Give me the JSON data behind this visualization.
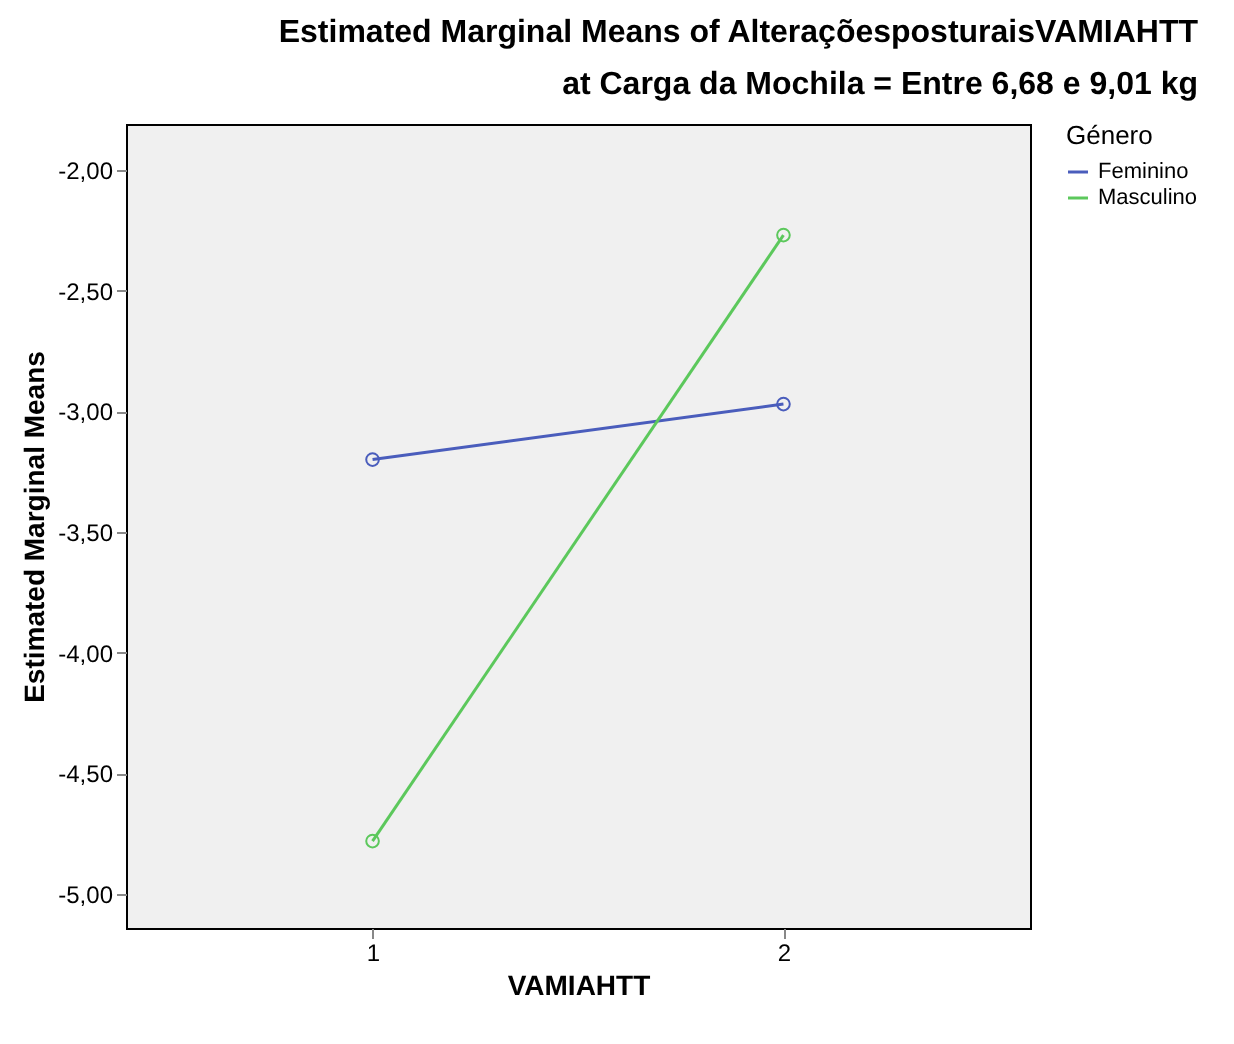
{
  "chart_data": {
    "type": "line",
    "title": "Estimated Marginal Means of AlteraçõesposturaisVAMIAHTT",
    "subtitle": "at Carga da Mochila = Entre 6,68 e 9,01 kg",
    "xlabel": "VAMIAHTT",
    "ylabel": "Estimated Marginal Means",
    "legend_title": "Género",
    "categories": [
      "1",
      "2"
    ],
    "series": [
      {
        "name": "Feminino",
        "color": "#4a5dbc",
        "values": [
          -3.2,
          -2.97
        ]
      },
      {
        "name": "Masculino",
        "color": "#5cc85c",
        "values": [
          -4.78,
          -2.27
        ]
      }
    ],
    "ylim": [
      -5.14,
      -1.81
    ],
    "yticks": [
      {
        "value": -5,
        "label": "-5,00"
      },
      {
        "value": -4.5,
        "label": "-4,50"
      },
      {
        "value": -4,
        "label": "-4,00"
      },
      {
        "value": -3.5,
        "label": "-3,50"
      },
      {
        "value": -3,
        "label": "-3,00"
      },
      {
        "value": -2.5,
        "label": "-2,50"
      },
      {
        "value": -2,
        "label": "-2,00"
      }
    ],
    "grid": false,
    "legend": "top right",
    "marker": "circle",
    "line_style": "solid"
  }
}
